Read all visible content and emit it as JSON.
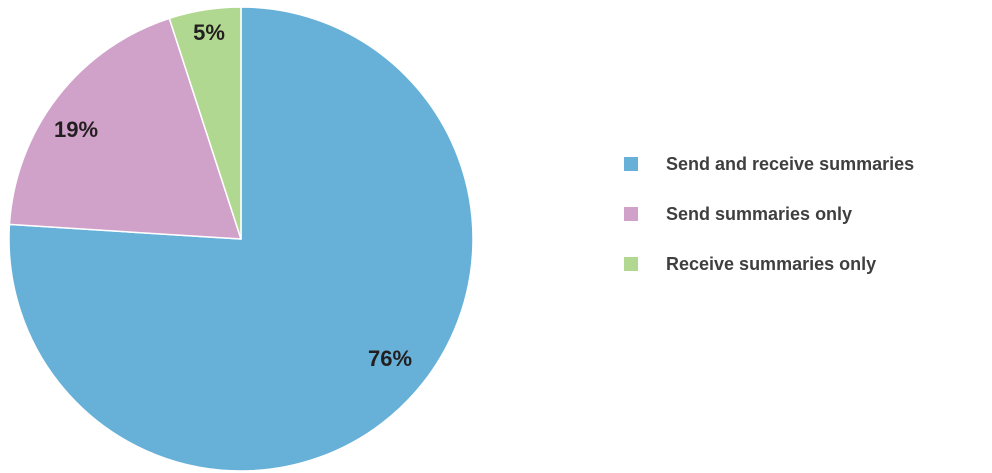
{
  "chart_data": {
    "type": "pie",
    "start_angle_deg": 0,
    "direction": "clockwise",
    "slices": [
      {
        "label": "Send and receive summaries",
        "value": 76,
        "value_label": "76%",
        "color": "#67b1d8"
      },
      {
        "label": "Send summaries only",
        "value": 19,
        "value_label": "19%",
        "color": "#d0a1c9"
      },
      {
        "label": "Receive summaries only",
        "value": 5,
        "value_label": "5%",
        "color": "#b1d890"
      }
    ],
    "legend_position": "right"
  }
}
